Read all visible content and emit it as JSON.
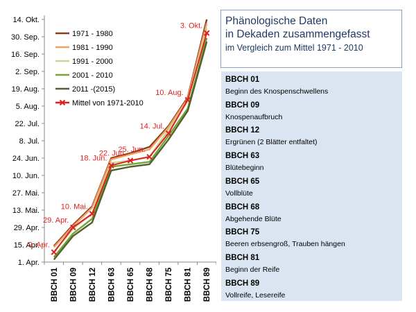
{
  "colors": {
    "series_1971_1980": "#8b3a1a",
    "series_1981_1990": "#f0a060",
    "series_1991_2000": "#c4d79b",
    "series_2001_2010": "#77a33a",
    "series_2011_2015": "#4f6228",
    "mean": "#e02020",
    "panel_bg": "#dbe5f1",
    "title_text": "#1f3a63"
  },
  "title_box": {
    "line1": "Phänologische Daten",
    "line2": "in Dekaden zusammengefasst",
    "line3": "im Vergleich zum Mittel 1971 - 2010"
  },
  "bbch_list": [
    {
      "code": "BBCH 01",
      "description": "Beginn des Knospenschwellens"
    },
    {
      "code": "BBCH 09",
      "description": "Knospenaufbruch"
    },
    {
      "code": "BBCH 12",
      "description": "Ergrünen (2 Blätter entfaltet)"
    },
    {
      "code": "BBCH 63",
      "description": "Blütebeginn"
    },
    {
      "code": "BBCH 65",
      "description": "Vollblüte"
    },
    {
      "code": "BBCH 68",
      "description": "Abgehende Blüte"
    },
    {
      "code": "BBCH 75",
      "description": "Beeren erbsengroß, Trauben hängen"
    },
    {
      "code": "BBCH 81",
      "description": "Beginn der Reife"
    },
    {
      "code": "BBCH 89",
      "description": "Vollreife, Lesereife"
    }
  ],
  "chart_data": {
    "type": "line",
    "title": "",
    "xlabel": "",
    "ylabel": "",
    "categories": [
      "BBCH 01",
      "BBCH 09",
      "BBCH 12",
      "BBCH 63",
      "BBCH 65",
      "BBCH 68",
      "BBCH 75",
      "BBCH 81",
      "BBCH 89"
    ],
    "y_axis": {
      "kind": "date",
      "ticks": [
        {
          "label": "1. Apr.",
          "date": "04-01"
        },
        {
          "label": "15. Apr.",
          "date": "04-15"
        },
        {
          "label": "29. Apr.",
          "date": "04-29"
        },
        {
          "label": "13. Mai.",
          "date": "05-13"
        },
        {
          "label": "27. Mai.",
          "date": "05-27"
        },
        {
          "label": "10. Jun.",
          "date": "06-10"
        },
        {
          "label": "24. Jun.",
          "date": "06-24"
        },
        {
          "label": "8. Jul.",
          "date": "07-08"
        },
        {
          "label": "22. Jul.",
          "date": "07-22"
        },
        {
          "label": "5. Aug.",
          "date": "08-05"
        },
        {
          "label": "19. Aug.",
          "date": "08-19"
        },
        {
          "label": "2. Sep.",
          "date": "09-02"
        },
        {
          "label": "16. Sep.",
          "date": "09-16"
        },
        {
          "label": "30. Sep.",
          "date": "09-30"
        },
        {
          "label": "14. Okt.",
          "date": "10-14"
        }
      ],
      "range": [
        "04-01",
        "10-14"
      ]
    },
    "grid": false,
    "legend": "top-left",
    "series": [
      {
        "name": "1971 - 1980",
        "color": "#8b3a1a",
        "values": [
          "04-14",
          "05-01",
          "05-16",
          "06-24",
          "06-28",
          "07-03",
          "07-20",
          "08-12",
          "10-14"
        ]
      },
      {
        "name": "1981 - 1990",
        "color": "#f0a060",
        "values": [
          "04-13",
          "04-30",
          "05-15",
          "06-23",
          "06-27",
          "07-01",
          "07-19",
          "08-11",
          "10-11"
        ]
      },
      {
        "name": "1991 - 2000",
        "color": "#c4d79b",
        "values": [
          "04-09",
          "04-28",
          "05-10",
          "06-20",
          "06-22",
          "06-25",
          "07-17",
          "08-09",
          "10-07"
        ]
      },
      {
        "name": "2001 - 2010",
        "color": "#77a33a",
        "values": [
          "04-05",
          "04-24",
          "05-06",
          "06-17",
          "06-19",
          "06-21",
          "07-12",
          "08-03",
          "09-29"
        ]
      },
      {
        "name": "2011 -(2015)",
        "color": "#4f6228",
        "values": [
          "04-03",
          "04-22",
          "05-03",
          "06-14",
          "06-17",
          "06-19",
          "07-09",
          "08-01",
          "09-26"
        ]
      },
      {
        "name": "Mittel von 1971-2010",
        "color": "#e02020",
        "marker": "x",
        "values": [
          "04-09",
          "04-29",
          "05-10",
          "06-18",
          "06-22",
          "06-25",
          "07-14",
          "08-10",
          "10-03"
        ],
        "labels": [
          "9. Apr.",
          "29. Apr.",
          "10. Mai.",
          "18. Jun.",
          "22. Jun.",
          "25. Jun.",
          "14. Jul.",
          "10. Aug.",
          "3. Okt."
        ]
      }
    ]
  }
}
